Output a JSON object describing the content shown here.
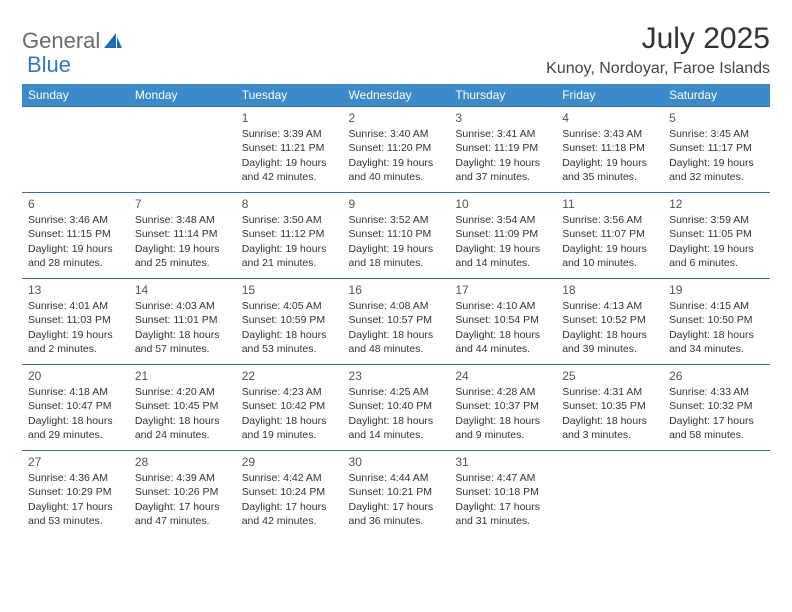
{
  "brand": {
    "part1": "General",
    "part2": "Blue"
  },
  "title": "July 2025",
  "location": "Kunoy, Nordoyar, Faroe Islands",
  "colors": {
    "header_bg": "#3b8bca",
    "header_text": "#ffffff",
    "cell_border": "#3b6f99",
    "brand_gray": "#6b6b6b",
    "brand_blue": "#2f7bbf"
  },
  "weekdays": [
    "Sunday",
    "Monday",
    "Tuesday",
    "Wednesday",
    "Thursday",
    "Friday",
    "Saturday"
  ],
  "weeks": [
    [
      null,
      null,
      {
        "n": "1",
        "sr": "Sunrise: 3:39 AM",
        "ss": "Sunset: 11:21 PM",
        "dl": "Daylight: 19 hours and 42 minutes."
      },
      {
        "n": "2",
        "sr": "Sunrise: 3:40 AM",
        "ss": "Sunset: 11:20 PM",
        "dl": "Daylight: 19 hours and 40 minutes."
      },
      {
        "n": "3",
        "sr": "Sunrise: 3:41 AM",
        "ss": "Sunset: 11:19 PM",
        "dl": "Daylight: 19 hours and 37 minutes."
      },
      {
        "n": "4",
        "sr": "Sunrise: 3:43 AM",
        "ss": "Sunset: 11:18 PM",
        "dl": "Daylight: 19 hours and 35 minutes."
      },
      {
        "n": "5",
        "sr": "Sunrise: 3:45 AM",
        "ss": "Sunset: 11:17 PM",
        "dl": "Daylight: 19 hours and 32 minutes."
      }
    ],
    [
      {
        "n": "6",
        "sr": "Sunrise: 3:46 AM",
        "ss": "Sunset: 11:15 PM",
        "dl": "Daylight: 19 hours and 28 minutes."
      },
      {
        "n": "7",
        "sr": "Sunrise: 3:48 AM",
        "ss": "Sunset: 11:14 PM",
        "dl": "Daylight: 19 hours and 25 minutes."
      },
      {
        "n": "8",
        "sr": "Sunrise: 3:50 AM",
        "ss": "Sunset: 11:12 PM",
        "dl": "Daylight: 19 hours and 21 minutes."
      },
      {
        "n": "9",
        "sr": "Sunrise: 3:52 AM",
        "ss": "Sunset: 11:10 PM",
        "dl": "Daylight: 19 hours and 18 minutes."
      },
      {
        "n": "10",
        "sr": "Sunrise: 3:54 AM",
        "ss": "Sunset: 11:09 PM",
        "dl": "Daylight: 19 hours and 14 minutes."
      },
      {
        "n": "11",
        "sr": "Sunrise: 3:56 AM",
        "ss": "Sunset: 11:07 PM",
        "dl": "Daylight: 19 hours and 10 minutes."
      },
      {
        "n": "12",
        "sr": "Sunrise: 3:59 AM",
        "ss": "Sunset: 11:05 PM",
        "dl": "Daylight: 19 hours and 6 minutes."
      }
    ],
    [
      {
        "n": "13",
        "sr": "Sunrise: 4:01 AM",
        "ss": "Sunset: 11:03 PM",
        "dl": "Daylight: 19 hours and 2 minutes."
      },
      {
        "n": "14",
        "sr": "Sunrise: 4:03 AM",
        "ss": "Sunset: 11:01 PM",
        "dl": "Daylight: 18 hours and 57 minutes."
      },
      {
        "n": "15",
        "sr": "Sunrise: 4:05 AM",
        "ss": "Sunset: 10:59 PM",
        "dl": "Daylight: 18 hours and 53 minutes."
      },
      {
        "n": "16",
        "sr": "Sunrise: 4:08 AM",
        "ss": "Sunset: 10:57 PM",
        "dl": "Daylight: 18 hours and 48 minutes."
      },
      {
        "n": "17",
        "sr": "Sunrise: 4:10 AM",
        "ss": "Sunset: 10:54 PM",
        "dl": "Daylight: 18 hours and 44 minutes."
      },
      {
        "n": "18",
        "sr": "Sunrise: 4:13 AM",
        "ss": "Sunset: 10:52 PM",
        "dl": "Daylight: 18 hours and 39 minutes."
      },
      {
        "n": "19",
        "sr": "Sunrise: 4:15 AM",
        "ss": "Sunset: 10:50 PM",
        "dl": "Daylight: 18 hours and 34 minutes."
      }
    ],
    [
      {
        "n": "20",
        "sr": "Sunrise: 4:18 AM",
        "ss": "Sunset: 10:47 PM",
        "dl": "Daylight: 18 hours and 29 minutes."
      },
      {
        "n": "21",
        "sr": "Sunrise: 4:20 AM",
        "ss": "Sunset: 10:45 PM",
        "dl": "Daylight: 18 hours and 24 minutes."
      },
      {
        "n": "22",
        "sr": "Sunrise: 4:23 AM",
        "ss": "Sunset: 10:42 PM",
        "dl": "Daylight: 18 hours and 19 minutes."
      },
      {
        "n": "23",
        "sr": "Sunrise: 4:25 AM",
        "ss": "Sunset: 10:40 PM",
        "dl": "Daylight: 18 hours and 14 minutes."
      },
      {
        "n": "24",
        "sr": "Sunrise: 4:28 AM",
        "ss": "Sunset: 10:37 PM",
        "dl": "Daylight: 18 hours and 9 minutes."
      },
      {
        "n": "25",
        "sr": "Sunrise: 4:31 AM",
        "ss": "Sunset: 10:35 PM",
        "dl": "Daylight: 18 hours and 3 minutes."
      },
      {
        "n": "26",
        "sr": "Sunrise: 4:33 AM",
        "ss": "Sunset: 10:32 PM",
        "dl": "Daylight: 17 hours and 58 minutes."
      }
    ],
    [
      {
        "n": "27",
        "sr": "Sunrise: 4:36 AM",
        "ss": "Sunset: 10:29 PM",
        "dl": "Daylight: 17 hours and 53 minutes."
      },
      {
        "n": "28",
        "sr": "Sunrise: 4:39 AM",
        "ss": "Sunset: 10:26 PM",
        "dl": "Daylight: 17 hours and 47 minutes."
      },
      {
        "n": "29",
        "sr": "Sunrise: 4:42 AM",
        "ss": "Sunset: 10:24 PM",
        "dl": "Daylight: 17 hours and 42 minutes."
      },
      {
        "n": "30",
        "sr": "Sunrise: 4:44 AM",
        "ss": "Sunset: 10:21 PM",
        "dl": "Daylight: 17 hours and 36 minutes."
      },
      {
        "n": "31",
        "sr": "Sunrise: 4:47 AM",
        "ss": "Sunset: 10:18 PM",
        "dl": "Daylight: 17 hours and 31 minutes."
      },
      null,
      null
    ]
  ]
}
